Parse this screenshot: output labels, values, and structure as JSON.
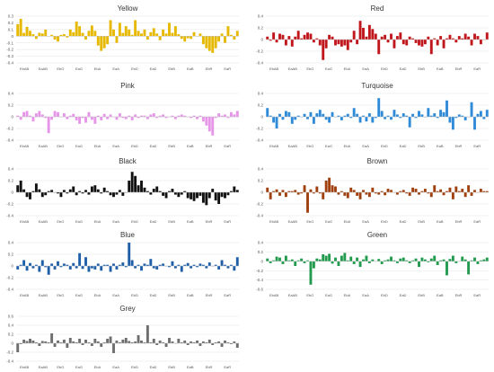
{
  "chart_data": [
    {
      "type": "bar",
      "title": "Yellow",
      "color": "#e6b800",
      "ylim": [
        -0.4,
        0.3
      ],
      "yticks": [
        0.3,
        0.2,
        0.1,
        0,
        -0.1,
        -0.2,
        -0.3,
        -0.4
      ],
      "xticks": [
        "EbAB",
        "EaAB",
        "EbG",
        "EaG",
        "EbA",
        "EaA",
        "EbD",
        "EaD",
        "EbB",
        "EaB",
        "EbR",
        "EaR"
      ],
      "values": [
        0.18,
        0.26,
        0.05,
        0.14,
        0.08,
        0.03,
        -0.04,
        0.05,
        0.04,
        0.1,
        0.0,
        0.02,
        -0.05,
        -0.08,
        0.02,
        0.03,
        -0.02,
        0.1,
        0.06,
        0.22,
        0.15,
        0.05,
        -0.05,
        0.08,
        0.16,
        0.08,
        -0.14,
        -0.22,
        -0.18,
        -0.12,
        0.24,
        0.1,
        -0.1,
        0.2,
        0.05,
        0.15,
        0.1,
        0.02,
        0.24,
        0.08,
        0.04,
        0.1,
        -0.05,
        0.06,
        0.12,
        0.04,
        -0.06,
        0.1,
        0.04,
        0.2,
        0.05,
        0.15,
        0.03,
        -0.04,
        -0.08,
        -0.03,
        -0.04,
        0.06,
        0.0,
        0.04,
        -0.12,
        -0.18,
        -0.22,
        -0.25,
        -0.18,
        -0.08,
        0.04,
        -0.1,
        0.15,
        0.02,
        -0.05,
        0.08
      ],
      "grid": true
    },
    {
      "type": "bar",
      "title": "Red",
      "color": "#c0171c",
      "ylim": [
        -0.4,
        0.4
      ],
      "yticks": [
        0.4,
        0.2,
        0,
        -0.2,
        -0.4
      ],
      "xticks": [
        "EbAB",
        "EaAB",
        "EbG",
        "EaG",
        "EbA",
        "EaA",
        "EbD",
        "EaD",
        "EbB",
        "EaB",
        "EbR",
        "EaR"
      ],
      "values": [
        0.05,
        -0.02,
        0.12,
        -0.05,
        0.1,
        0.08,
        -0.1,
        0.06,
        -0.12,
        0.05,
        0.15,
        0.02,
        0.08,
        0.12,
        0.1,
        -0.05,
        0.02,
        -0.1,
        -0.35,
        -0.15,
        0.08,
        0.05,
        -0.1,
        -0.08,
        -0.12,
        -0.1,
        -0.18,
        -0.05,
        0.15,
        -0.08,
        0.32,
        0.2,
        0.05,
        0.25,
        0.18,
        0.1,
        -0.25,
        0.05,
        0.08,
        -0.05,
        0.1,
        -0.15,
        0.06,
        0.12,
        -0.08,
        -0.1,
        0.05,
        0.02,
        -0.06,
        -0.1,
        -0.12,
        -0.08,
        0.05,
        -0.25,
        0.02,
        -0.1,
        0.06,
        -0.15,
        0.02,
        0.08,
        0.02,
        -0.05,
        0.06,
        0.02,
        0.1,
        0.05,
        -0.1,
        0.1,
        0.06,
        -0.08,
        0.0,
        0.12
      ],
      "grid": true
    },
    {
      "type": "bar",
      "title": "Pink",
      "color": "#e695e8",
      "ylim": [
        -0.4,
        0.4
      ],
      "yticks": [
        0.4,
        0.2,
        0,
        -0.2,
        -0.4
      ],
      "xticks": [
        "EbAB",
        "EaAB",
        "EbG",
        "EaG",
        "EbA",
        "EaA",
        "EbD",
        "EaD",
        "EbB",
        "EaB",
        "EbR",
        "EaR"
      ],
      "values": [
        0.02,
        -0.05,
        0.08,
        0.1,
        0.02,
        -0.08,
        0.06,
        0.1,
        0.04,
        -0.02,
        -0.28,
        -0.05,
        0.1,
        0.08,
        0.0,
        0.06,
        -0.04,
        0.02,
        0.05,
        -0.06,
        -0.12,
        -0.02,
        -0.1,
        0.08,
        -0.05,
        -0.12,
        0.02,
        -0.06,
        0.05,
        -0.04,
        0.04,
        0.0,
        -0.05,
        0.06,
        -0.02,
        -0.04,
        0.02,
        -0.06,
        0.04,
        -0.02,
        0.02,
        0.02,
        -0.04,
        0.04,
        0.06,
        -0.02,
        0.02,
        0.04,
        -0.02,
        0.0,
        0.02,
        -0.04,
        0.02,
        0.04,
        0.02,
        0.0,
        -0.02,
        0.02,
        -0.04,
        0.02,
        -0.08,
        -0.15,
        -0.25,
        -0.32,
        -0.02,
        0.06,
        0.02,
        0.04,
        -0.02,
        0.08,
        0.04,
        0.1
      ],
      "grid": true
    },
    {
      "type": "bar",
      "title": "Turquoise",
      "color": "#2f8ad8",
      "ylim": [
        -0.4,
        0.4
      ],
      "yticks": [
        0.4,
        0.2,
        0,
        -0.2,
        -0.4
      ],
      "xticks": [
        "EbAB",
        "EaAB",
        "EbG",
        "EaG",
        "EbA",
        "EaA",
        "EbD",
        "EaD",
        "EbB",
        "EaB",
        "EbR",
        "EaR"
      ],
      "values": [
        0.15,
        0.02,
        -0.1,
        -0.2,
        0.05,
        -0.05,
        0.1,
        0.08,
        -0.12,
        -0.05,
        0.02,
        0.0,
        0.05,
        -0.04,
        0.08,
        -0.12,
        0.06,
        0.12,
        0.05,
        -0.05,
        -0.1,
        0.08,
        0.0,
        0.02,
        -0.06,
        0.02,
        0.05,
        -0.02,
        0.15,
        0.05,
        -0.1,
        0.02,
        -0.08,
        0.06,
        -0.1,
        -0.02,
        0.32,
        0.1,
        -0.04,
        0.02,
        -0.05,
        0.12,
        0.04,
        -0.02,
        0.06,
        0.02,
        -0.18,
        0.05,
        -0.02,
        0.1,
        0.04,
        0.0,
        0.15,
        0.02,
        0.06,
        -0.02,
        0.12,
        0.08,
        0.28,
        -0.1,
        -0.22,
        -0.02,
        0.04,
        0.02,
        -0.06,
        0.0,
        0.25,
        -0.22,
        0.05,
        0.1,
        -0.04,
        0.12
      ],
      "grid": true
    },
    {
      "type": "bar",
      "title": "Black",
      "color": "#111111",
      "ylim": [
        -0.4,
        0.4
      ],
      "yticks": [
        0.4,
        0.2,
        0,
        -0.2,
        -0.4
      ],
      "xticks": [
        "EbAB",
        "EaAB",
        "EbG",
        "EaG",
        "EbA",
        "EaA",
        "EbD",
        "EaD",
        "EbB",
        "EaB",
        "EbR",
        "EaR"
      ],
      "values": [
        0.12,
        0.2,
        0.05,
        -0.08,
        -0.12,
        0.02,
        0.15,
        0.05,
        -0.08,
        -0.05,
        0.02,
        0.04,
        0.0,
        -0.02,
        -0.08,
        0.04,
        -0.02,
        0.05,
        0.1,
        -0.05,
        0.02,
        -0.02,
        0.04,
        -0.04,
        0.1,
        0.12,
        0.05,
        -0.02,
        0.08,
        0.02,
        -0.05,
        -0.08,
        -0.04,
        0.04,
        -0.06,
        0.0,
        0.2,
        0.35,
        0.28,
        0.12,
        0.2,
        0.08,
        0.02,
        -0.04,
        0.06,
        0.1,
        0.02,
        -0.06,
        -0.1,
        0.02,
        0.06,
        -0.04,
        -0.08,
        -0.04,
        0.02,
        -0.1,
        -0.12,
        -0.15,
        -0.1,
        -0.06,
        -0.18,
        -0.22,
        -0.1,
        0.06,
        -0.14,
        -0.2,
        -0.08,
        -0.1,
        -0.05,
        0.02,
        0.1,
        0.04
      ],
      "grid": true
    },
    {
      "type": "bar",
      "title": "Brown",
      "color": "#a0400e",
      "ylim": [
        -0.4,
        0.4
      ],
      "yticks": [
        0.4,
        0.2,
        0,
        -0.2,
        -0.4
      ],
      "xticks": [
        "EbAB",
        "EaAB",
        "EbG",
        "EaG",
        "EbA",
        "EaA",
        "EbD",
        "EaD",
        "EbB",
        "EaB",
        "EbR",
        "EaR"
      ],
      "values": [
        0.08,
        -0.12,
        0.02,
        0.05,
        -0.06,
        0.04,
        -0.08,
        0.02,
        0.02,
        0.04,
        -0.04,
        -0.02,
        0.12,
        -0.35,
        0.05,
        -0.02,
        0.1,
        -0.02,
        -0.12,
        0.2,
        0.25,
        0.12,
        0.1,
        -0.04,
        0.02,
        -0.06,
        -0.1,
        0.08,
        0.04,
        -0.06,
        -0.12,
        0.04,
        -0.04,
        -0.08,
        0.08,
        -0.02,
        -0.04,
        0.02,
        -0.05,
        0.06,
        0.04,
        0.0,
        -0.04,
        0.02,
        0.04,
        -0.02,
        -0.06,
        0.08,
        0.06,
        -0.04,
        0.02,
        0.06,
        -0.02,
        -0.08,
        0.12,
        0.02,
        0.05,
        -0.05,
        0.02,
        0.08,
        -0.12,
        0.1,
        0.02,
        0.06,
        -0.08,
        0.12,
        -0.06,
        0.04,
        0.0,
        0.06,
        0.02,
        0.02
      ],
      "grid": true
    },
    {
      "type": "bar",
      "title": "Blue",
      "color": "#1f5fa8",
      "ylim": [
        -0.4,
        0.4
      ],
      "yticks": [
        0.4,
        0.2,
        0,
        -0.2,
        -0.4
      ],
      "xticks": [
        "EbAB",
        "EaAB",
        "EbG",
        "EaG",
        "EbA",
        "EaA",
        "EbD",
        "EaD",
        "EbB",
        "EaB",
        "EbR",
        "EaR"
      ],
      "values": [
        -0.06,
        0.02,
        0.1,
        -0.08,
        0.05,
        -0.04,
        0.02,
        -0.1,
        0.1,
        -0.02,
        -0.15,
        0.04,
        -0.06,
        0.08,
        -0.02,
        0.04,
        0.02,
        -0.06,
        0.05,
        -0.04,
        0.22,
        -0.05,
        0.15,
        -0.1,
        -0.04,
        -0.06,
        0.04,
        -0.08,
        0.02,
        0.02,
        -0.1,
        0.04,
        -0.06,
        0.02,
        0.06,
        -0.02,
        0.4,
        0.1,
        -0.04,
        0.02,
        -0.08,
        0.04,
        0.02,
        0.12,
        -0.04,
        -0.06,
        0.02,
        0.04,
        0.0,
        -0.02,
        0.08,
        -0.04,
        0.02,
        -0.1,
        0.02,
        0.05,
        -0.04,
        0.02,
        -0.02,
        0.04,
        0.02,
        -0.04,
        0.06,
        0.0,
        0.02,
        -0.06,
        0.1,
        0.02,
        -0.04,
        0.02,
        -0.08,
        0.15
      ],
      "grid": true
    },
    {
      "type": "bar",
      "title": "Green",
      "color": "#239b4e",
      "ylim": [
        -0.6,
        0.4
      ],
      "yticks": [
        0.4,
        0.2,
        0,
        -0.2,
        -0.4,
        -0.6
      ],
      "xticks": [
        "EbAB",
        "EaAB",
        "EbG",
        "EaG",
        "EbA",
        "EaA",
        "EbD",
        "EaD",
        "EbB",
        "EaB",
        "EbR",
        "EaR"
      ],
      "values": [
        0.06,
        -0.04,
        0.02,
        0.1,
        0.08,
        -0.06,
        0.12,
        0.02,
        0.04,
        -0.1,
        0.02,
        0.06,
        -0.04,
        0.02,
        -0.5,
        -0.15,
        0.06,
        0.04,
        0.15,
        0.12,
        0.16,
        -0.05,
        0.08,
        -0.1,
        0.12,
        0.18,
        0.02,
        0.1,
        -0.06,
        0.08,
        -0.12,
        0.04,
        0.12,
        -0.04,
        0.04,
        0.0,
        0.05,
        -0.06,
        0.02,
        0.04,
        0.1,
        0.02,
        -0.04,
        0.06,
        0.08,
        0.02,
        -0.04,
        0.02,
        0.06,
        -0.12,
        0.08,
        0.04,
        -0.02,
        0.06,
        0.12,
        -0.08,
        0.02,
        0.04,
        -0.3,
        0.05,
        0.12,
        -0.04,
        0.0,
        0.1,
        0.04,
        -0.28,
        0.02,
        0.08,
        -0.06,
        0.02,
        0.04,
        0.08
      ],
      "grid": true
    },
    {
      "type": "bar",
      "title": "Grey",
      "color": "#6e6e6e",
      "ylim": [
        -0.4,
        0.6
      ],
      "yticks": [
        0.6,
        0.4,
        0.2,
        0,
        -0.2,
        -0.4
      ],
      "xticks": [
        "EbAB",
        "EaAB",
        "EbG",
        "EaG",
        "EbA",
        "EaA",
        "EbD",
        "EaD",
        "EbB",
        "EaB",
        "EbR",
        "EaR"
      ],
      "values": [
        -0.2,
        -0.02,
        0.08,
        0.05,
        0.1,
        0.06,
        0.02,
        -0.06,
        0.05,
        0.04,
        0.02,
        0.22,
        -0.08,
        0.06,
        0.02,
        0.08,
        -0.1,
        0.12,
        0.04,
        0.02,
        0.1,
        -0.04,
        0.08,
        0.02,
        -0.06,
        0.1,
        0.04,
        -0.08,
        0.02,
        0.1,
        0.15,
        -0.22,
        0.06,
        0.02,
        0.08,
        0.12,
        0.05,
        0.02,
        0.04,
        0.18,
        0.06,
        0.02,
        0.4,
        0.02,
        0.1,
        -0.04,
        0.06,
        0.02,
        -0.08,
        0.12,
        0.04,
        0.0,
        0.1,
        0.02,
        0.06,
        -0.04,
        0.04,
        0.02,
        0.06,
        -0.06,
        0.04,
        0.02,
        0.08,
        -0.04,
        0.02,
        0.04,
        -0.08,
        0.06,
        0.02,
        -0.02,
        0.04,
        -0.1
      ],
      "grid": true
    }
  ]
}
